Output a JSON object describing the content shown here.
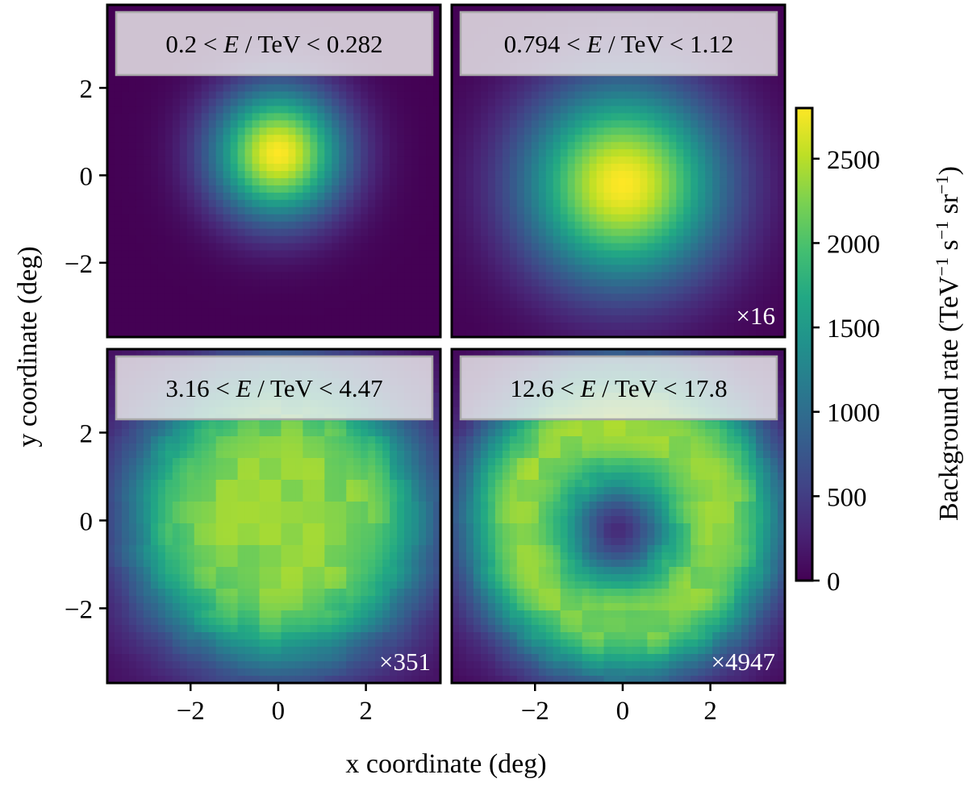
{
  "chart_data": {
    "type": "heatmap",
    "xlabel": "x coordinate (deg)",
    "ylabel": "y coordinate (deg)",
    "xlim": [
      -3.9,
      3.7
    ],
    "ylim": [
      -3.7,
      3.9
    ],
    "xticks": [
      -2,
      0,
      2
    ],
    "yticks": [
      -2,
      0,
      2
    ],
    "xtick_labels": [
      "−2",
      "0",
      "2"
    ],
    "ytick_labels": [
      "−2",
      "0",
      "2"
    ],
    "colorbar": {
      "label_main": "Background rate (TeV",
      "label_exp1": "−1",
      "label_mid": " s",
      "label_exp2": "−1",
      "label_mid2": " sr",
      "label_exp3": "−1",
      "label_end": ")",
      "min": 0,
      "max": 2800,
      "ticks": [
        0,
        500,
        1000,
        1500,
        2000,
        2500
      ],
      "tick_labels": [
        "0",
        "500",
        "1000",
        "1500",
        "2000",
        "2500"
      ],
      "colormap": "viridis"
    },
    "panels": [
      {
        "energy_low": "0.2",
        "energy_high": "0.282",
        "label_left": "0.2 < ",
        "label_E": "E",
        "label_right": " / TeV < 0.282",
        "scale_factor": "",
        "pattern": "central",
        "center": [
          0.0,
          0.5
        ],
        "width": 1.6
      },
      {
        "energy_low": "0.794",
        "energy_high": "1.12",
        "label_left": "0.794 < ",
        "label_E": "E",
        "label_right": " / TeV < 1.12",
        "scale_factor": "×16",
        "pattern": "central",
        "center": [
          0.0,
          -0.2
        ],
        "width": 2.4
      },
      {
        "energy_low": "3.16",
        "energy_high": "4.47",
        "label_left": "3.16 < ",
        "label_E": "E",
        "label_right": " / TeV < 4.47",
        "scale_factor": "×351",
        "pattern": "broad",
        "center": [
          0.0,
          0.1
        ],
        "width": 3.3
      },
      {
        "energy_low": "12.6",
        "energy_high": "17.8",
        "label_left": "12.6 < ",
        "label_E": "E",
        "label_right": " / TeV < 17.8",
        "scale_factor": "×4947",
        "pattern": "ring",
        "center": [
          -0.1,
          -0.2
        ],
        "width": 3.0
      }
    ]
  }
}
